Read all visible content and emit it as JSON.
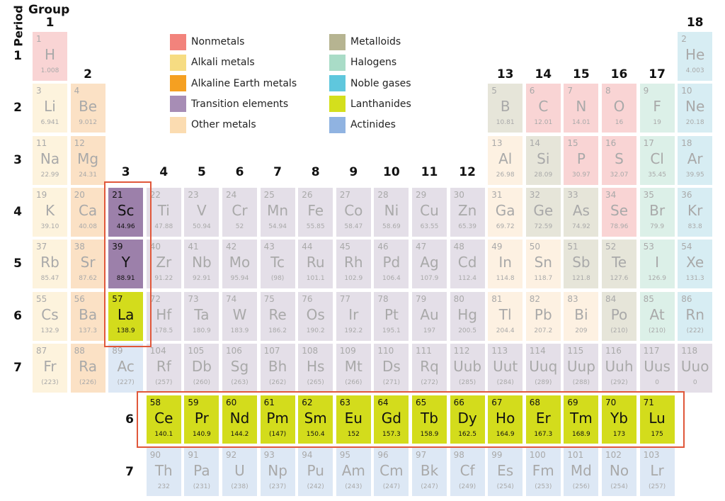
{
  "header": {
    "period_label": "Period",
    "group_label": "Group"
  },
  "groups": [
    "1",
    "2",
    "3",
    "4",
    "5",
    "6",
    "7",
    "8",
    "9",
    "10",
    "11",
    "12",
    "13",
    "14",
    "15",
    "16",
    "17",
    "18"
  ],
  "periods": [
    "1",
    "2",
    "3",
    "4",
    "5",
    "6",
    "7"
  ],
  "fblock_period_labels": [
    "6",
    "7"
  ],
  "legend": [
    {
      "label": "Nonmetals",
      "color": "#f2837c"
    },
    {
      "label": "Alkali metals",
      "color": "#f6dc82"
    },
    {
      "label": "Alkaline Earth metals",
      "color": "#f5a021"
    },
    {
      "label": "Transition elements",
      "color": "#a78db5"
    },
    {
      "label": "Other metals",
      "color": "#fbdcb1"
    },
    {
      "label": "Metalloids",
      "color": "#b6b491"
    },
    {
      "label": "Halogens",
      "color": "#a9dcc7"
    },
    {
      "label": "Noble gases",
      "color": "#5fc7dd"
    },
    {
      "label": "Lanthanides",
      "color": "#d4df1c"
    },
    {
      "label": "Actinides",
      "color": "#90b3e1"
    }
  ],
  "category_colors_faded": {
    "n": "#f9d4d4",
    "a": "#fdf3dd",
    "ae": "#fbe1c5",
    "t": "#e4dfe8",
    "o": "#fdf1e2",
    "m": "#e6e5d9",
    "h": "#dcf0e8",
    "g": "#d7edf3",
    "l": "#d3dc1c",
    "c": "#dde8f5"
  },
  "highlight_colors": {
    "t": "#9c80aa",
    "l": "#d3dc1c",
    "frame": "#e0573a"
  },
  "elements": [
    {
      "n": "1",
      "s": "H",
      "m": "1.008",
      "c": "n",
      "p": 1,
      "g": 1
    },
    {
      "n": "2",
      "s": "He",
      "m": "4.003",
      "c": "g",
      "p": 1,
      "g": 18
    },
    {
      "n": "3",
      "s": "Li",
      "m": "6.941",
      "c": "a",
      "p": 2,
      "g": 1
    },
    {
      "n": "4",
      "s": "Be",
      "m": "9.012",
      "c": "ae",
      "p": 2,
      "g": 2
    },
    {
      "n": "5",
      "s": "B",
      "m": "10.81",
      "c": "m",
      "p": 2,
      "g": 13
    },
    {
      "n": "6",
      "s": "C",
      "m": "12.01",
      "c": "n",
      "p": 2,
      "g": 14
    },
    {
      "n": "7",
      "s": "N",
      "m": "14.01",
      "c": "n",
      "p": 2,
      "g": 15
    },
    {
      "n": "8",
      "s": "O",
      "m": "16",
      "c": "n",
      "p": 2,
      "g": 16
    },
    {
      "n": "9",
      "s": "F",
      "m": "19",
      "c": "h",
      "p": 2,
      "g": 17
    },
    {
      "n": "10",
      "s": "Ne",
      "m": "20.18",
      "c": "g",
      "p": 2,
      "g": 18
    },
    {
      "n": "11",
      "s": "Na",
      "m": "22.99",
      "c": "a",
      "p": 3,
      "g": 1
    },
    {
      "n": "12",
      "s": "Mg",
      "m": "24.31",
      "c": "ae",
      "p": 3,
      "g": 2
    },
    {
      "n": "13",
      "s": "Al",
      "m": "26.98",
      "c": "o",
      "p": 3,
      "g": 13
    },
    {
      "n": "14",
      "s": "Si",
      "m": "28.09",
      "c": "m",
      "p": 3,
      "g": 14
    },
    {
      "n": "15",
      "s": "P",
      "m": "30.97",
      "c": "n",
      "p": 3,
      "g": 15
    },
    {
      "n": "16",
      "s": "S",
      "m": "32.07",
      "c": "n",
      "p": 3,
      "g": 16
    },
    {
      "n": "17",
      "s": "Cl",
      "m": "35.45",
      "c": "h",
      "p": 3,
      "g": 17
    },
    {
      "n": "18",
      "s": "Ar",
      "m": "39.95",
      "c": "g",
      "p": 3,
      "g": 18
    },
    {
      "n": "19",
      "s": "K",
      "m": "39.10",
      "c": "a",
      "p": 4,
      "g": 1
    },
    {
      "n": "20",
      "s": "Ca",
      "m": "40.08",
      "c": "ae",
      "p": 4,
      "g": 2
    },
    {
      "n": "21",
      "s": "Sc",
      "m": "44.96",
      "c": "t",
      "p": 4,
      "g": 3,
      "hl": true
    },
    {
      "n": "22",
      "s": "Ti",
      "m": "47.88",
      "c": "t",
      "p": 4,
      "g": 4
    },
    {
      "n": "23",
      "s": "V",
      "m": "50.94",
      "c": "t",
      "p": 4,
      "g": 5
    },
    {
      "n": "24",
      "s": "Cr",
      "m": "52",
      "c": "t",
      "p": 4,
      "g": 6
    },
    {
      "n": "25",
      "s": "Mn",
      "m": "54.94",
      "c": "t",
      "p": 4,
      "g": 7
    },
    {
      "n": "26",
      "s": "Fe",
      "m": "55.85",
      "c": "t",
      "p": 4,
      "g": 8
    },
    {
      "n": "27",
      "s": "Co",
      "m": "58.47",
      "c": "t",
      "p": 4,
      "g": 9
    },
    {
      "n": "28",
      "s": "Ni",
      "m": "58.69",
      "c": "t",
      "p": 4,
      "g": 10
    },
    {
      "n": "29",
      "s": "Cu",
      "m": "63.55",
      "c": "t",
      "p": 4,
      "g": 11
    },
    {
      "n": "30",
      "s": "Zn",
      "m": "65.39",
      "c": "t",
      "p": 4,
      "g": 12
    },
    {
      "n": "31",
      "s": "Ga",
      "m": "69.72",
      "c": "o",
      "p": 4,
      "g": 13
    },
    {
      "n": "32",
      "s": "Ge",
      "m": "72.59",
      "c": "m",
      "p": 4,
      "g": 14
    },
    {
      "n": "33",
      "s": "As",
      "m": "74.92",
      "c": "m",
      "p": 4,
      "g": 15
    },
    {
      "n": "34",
      "s": "Se",
      "m": "78.96",
      "c": "n",
      "p": 4,
      "g": 16
    },
    {
      "n": "35",
      "s": "Br",
      "m": "79.9",
      "c": "h",
      "p": 4,
      "g": 17
    },
    {
      "n": "36",
      "s": "Kr",
      "m": "83.8",
      "c": "g",
      "p": 4,
      "g": 18
    },
    {
      "n": "37",
      "s": "Rb",
      "m": "85.47",
      "c": "a",
      "p": 5,
      "g": 1
    },
    {
      "n": "38",
      "s": "Sr",
      "m": "87.62",
      "c": "ae",
      "p": 5,
      "g": 2
    },
    {
      "n": "39",
      "s": "Y",
      "m": "88.91",
      "c": "t",
      "p": 5,
      "g": 3,
      "hl": true
    },
    {
      "n": "40",
      "s": "Zr",
      "m": "91.22",
      "c": "t",
      "p": 5,
      "g": 4
    },
    {
      "n": "41",
      "s": "Nb",
      "m": "92.91",
      "c": "t",
      "p": 5,
      "g": 5
    },
    {
      "n": "42",
      "s": "Mo",
      "m": "95.94",
      "c": "t",
      "p": 5,
      "g": 6
    },
    {
      "n": "43",
      "s": "Tc",
      "m": "(98)",
      "c": "t",
      "p": 5,
      "g": 7
    },
    {
      "n": "44",
      "s": "Ru",
      "m": "101.1",
      "c": "t",
      "p": 5,
      "g": 8
    },
    {
      "n": "45",
      "s": "Rh",
      "m": "102.9",
      "c": "t",
      "p": 5,
      "g": 9
    },
    {
      "n": "46",
      "s": "Pd",
      "m": "106.4",
      "c": "t",
      "p": 5,
      "g": 10
    },
    {
      "n": "47",
      "s": "Ag",
      "m": "107.9",
      "c": "t",
      "p": 5,
      "g": 11
    },
    {
      "n": "48",
      "s": "Cd",
      "m": "112.4",
      "c": "t",
      "p": 5,
      "g": 12
    },
    {
      "n": "49",
      "s": "In",
      "m": "114.8",
      "c": "o",
      "p": 5,
      "g": 13
    },
    {
      "n": "50",
      "s": "Sn",
      "m": "118.7",
      "c": "o",
      "p": 5,
      "g": 14
    },
    {
      "n": "51",
      "s": "Sb",
      "m": "121.8",
      "c": "m",
      "p": 5,
      "g": 15
    },
    {
      "n": "52",
      "s": "Te",
      "m": "127.6",
      "c": "m",
      "p": 5,
      "g": 16
    },
    {
      "n": "53",
      "s": "I",
      "m": "126.9",
      "c": "h",
      "p": 5,
      "g": 17
    },
    {
      "n": "54",
      "s": "Xe",
      "m": "131.3",
      "c": "g",
      "p": 5,
      "g": 18
    },
    {
      "n": "55",
      "s": "Cs",
      "m": "132.9",
      "c": "a",
      "p": 6,
      "g": 1
    },
    {
      "n": "56",
      "s": "Ba",
      "m": "137.3",
      "c": "ae",
      "p": 6,
      "g": 2
    },
    {
      "n": "57",
      "s": "La",
      "m": "138.9",
      "c": "l",
      "p": 6,
      "g": 3,
      "hl": true
    },
    {
      "n": "72",
      "s": "Hf",
      "m": "178.5",
      "c": "t",
      "p": 6,
      "g": 4
    },
    {
      "n": "73",
      "s": "Ta",
      "m": "180.9",
      "c": "t",
      "p": 6,
      "g": 5
    },
    {
      "n": "74",
      "s": "W",
      "m": "183.9",
      "c": "t",
      "p": 6,
      "g": 6
    },
    {
      "n": "75",
      "s": "Re",
      "m": "186.2",
      "c": "t",
      "p": 6,
      "g": 7
    },
    {
      "n": "76",
      "s": "Os",
      "m": "190.2",
      "c": "t",
      "p": 6,
      "g": 8
    },
    {
      "n": "77",
      "s": "Ir",
      "m": "192.2",
      "c": "t",
      "p": 6,
      "g": 9
    },
    {
      "n": "78",
      "s": "Pt",
      "m": "195.1",
      "c": "t",
      "p": 6,
      "g": 10
    },
    {
      "n": "79",
      "s": "Au",
      "m": "197",
      "c": "t",
      "p": 6,
      "g": 11
    },
    {
      "n": "80",
      "s": "Hg",
      "m": "200.5",
      "c": "t",
      "p": 6,
      "g": 12
    },
    {
      "n": "81",
      "s": "Tl",
      "m": "204.4",
      "c": "o",
      "p": 6,
      "g": 13
    },
    {
      "n": "82",
      "s": "Pb",
      "m": "207.2",
      "c": "o",
      "p": 6,
      "g": 14
    },
    {
      "n": "83",
      "s": "Bi",
      "m": "209",
      "c": "o",
      "p": 6,
      "g": 15
    },
    {
      "n": "84",
      "s": "Po",
      "m": "(210)",
      "c": "m",
      "p": 6,
      "g": 16
    },
    {
      "n": "85",
      "s": "At",
      "m": "(210)",
      "c": "h",
      "p": 6,
      "g": 17
    },
    {
      "n": "86",
      "s": "Rn",
      "m": "(222)",
      "c": "g",
      "p": 6,
      "g": 18
    },
    {
      "n": "87",
      "s": "Fr",
      "m": "(223)",
      "c": "a",
      "p": 7,
      "g": 1
    },
    {
      "n": "88",
      "s": "Ra",
      "m": "(226)",
      "c": "ae",
      "p": 7,
      "g": 2
    },
    {
      "n": "89",
      "s": "Ac",
      "m": "(227)",
      "c": "c",
      "p": 7,
      "g": 3
    },
    {
      "n": "104",
      "s": "Rf",
      "m": "(257)",
      "c": "t",
      "p": 7,
      "g": 4
    },
    {
      "n": "105",
      "s": "Db",
      "m": "(260)",
      "c": "t",
      "p": 7,
      "g": 5
    },
    {
      "n": "106",
      "s": "Sg",
      "m": "(263)",
      "c": "t",
      "p": 7,
      "g": 6
    },
    {
      "n": "107",
      "s": "Bh",
      "m": "(262)",
      "c": "t",
      "p": 7,
      "g": 7
    },
    {
      "n": "108",
      "s": "Hs",
      "m": "(265)",
      "c": "t",
      "p": 7,
      "g": 8
    },
    {
      "n": "109",
      "s": "Mt",
      "m": "(266)",
      "c": "t",
      "p": 7,
      "g": 9
    },
    {
      "n": "110",
      "s": "Ds",
      "m": "(271)",
      "c": "t",
      "p": 7,
      "g": 10
    },
    {
      "n": "111",
      "s": "Rq",
      "m": "(272)",
      "c": "t",
      "p": 7,
      "g": 11
    },
    {
      "n": "112",
      "s": "Uub",
      "m": "(285)",
      "c": "t",
      "p": 7,
      "g": 12
    },
    {
      "n": "113",
      "s": "Uut",
      "m": "(284)",
      "c": "t",
      "p": 7,
      "g": 13
    },
    {
      "n": "114",
      "s": "Uuq",
      "m": "(289)",
      "c": "t",
      "p": 7,
      "g": 14
    },
    {
      "n": "115",
      "s": "Uup",
      "m": "(288)",
      "c": "t",
      "p": 7,
      "g": 15
    },
    {
      "n": "116",
      "s": "Uuh",
      "m": "(292)",
      "c": "t",
      "p": 7,
      "g": 16
    },
    {
      "n": "117",
      "s": "Uus",
      "m": "0",
      "c": "t",
      "p": 7,
      "g": 17
    },
    {
      "n": "118",
      "s": "Uuo",
      "m": "0",
      "c": "t",
      "p": 7,
      "g": 18
    }
  ],
  "lanthanides": [
    {
      "n": "58",
      "s": "Ce",
      "m": "140.1"
    },
    {
      "n": "59",
      "s": "Pr",
      "m": "140.9"
    },
    {
      "n": "60",
      "s": "Nd",
      "m": "144.2"
    },
    {
      "n": "61",
      "s": "Pm",
      "m": "(147)"
    },
    {
      "n": "62",
      "s": "Sm",
      "m": "150.4"
    },
    {
      "n": "63",
      "s": "Eu",
      "m": "152"
    },
    {
      "n": "64",
      "s": "Gd",
      "m": "157.3"
    },
    {
      "n": "65",
      "s": "Tb",
      "m": "158.9"
    },
    {
      "n": "66",
      "s": "Dy",
      "m": "162.5"
    },
    {
      "n": "67",
      "s": "Ho",
      "m": "164.9"
    },
    {
      "n": "68",
      "s": "Er",
      "m": "167.3"
    },
    {
      "n": "69",
      "s": "Tm",
      "m": "168.9"
    },
    {
      "n": "70",
      "s": "Yb",
      "m": "173"
    },
    {
      "n": "71",
      "s": "Lu",
      "m": "175"
    }
  ],
  "actinides": [
    {
      "n": "90",
      "s": "Th",
      "m": "232"
    },
    {
      "n": "91",
      "s": "Pa",
      "m": "(231)"
    },
    {
      "n": "92",
      "s": "U",
      "m": "(238)"
    },
    {
      "n": "93",
      "s": "Np",
      "m": "(237)"
    },
    {
      "n": "94",
      "s": "Pu",
      "m": "(242)"
    },
    {
      "n": "95",
      "s": "Am",
      "m": "(243)"
    },
    {
      "n": "96",
      "s": "Cm",
      "m": "(247)"
    },
    {
      "n": "97",
      "s": "Bk",
      "m": "(247)"
    },
    {
      "n": "98",
      "s": "Cf",
      "m": "(249)"
    },
    {
      "n": "99",
      "s": "Es",
      "m": "(254)"
    },
    {
      "n": "100",
      "s": "Fm",
      "m": "(253)"
    },
    {
      "n": "101",
      "s": "Md",
      "m": "(256)"
    },
    {
      "n": "102",
      "s": "No",
      "m": "(254)"
    },
    {
      "n": "103",
      "s": "Lr",
      "m": "(257)"
    }
  ]
}
